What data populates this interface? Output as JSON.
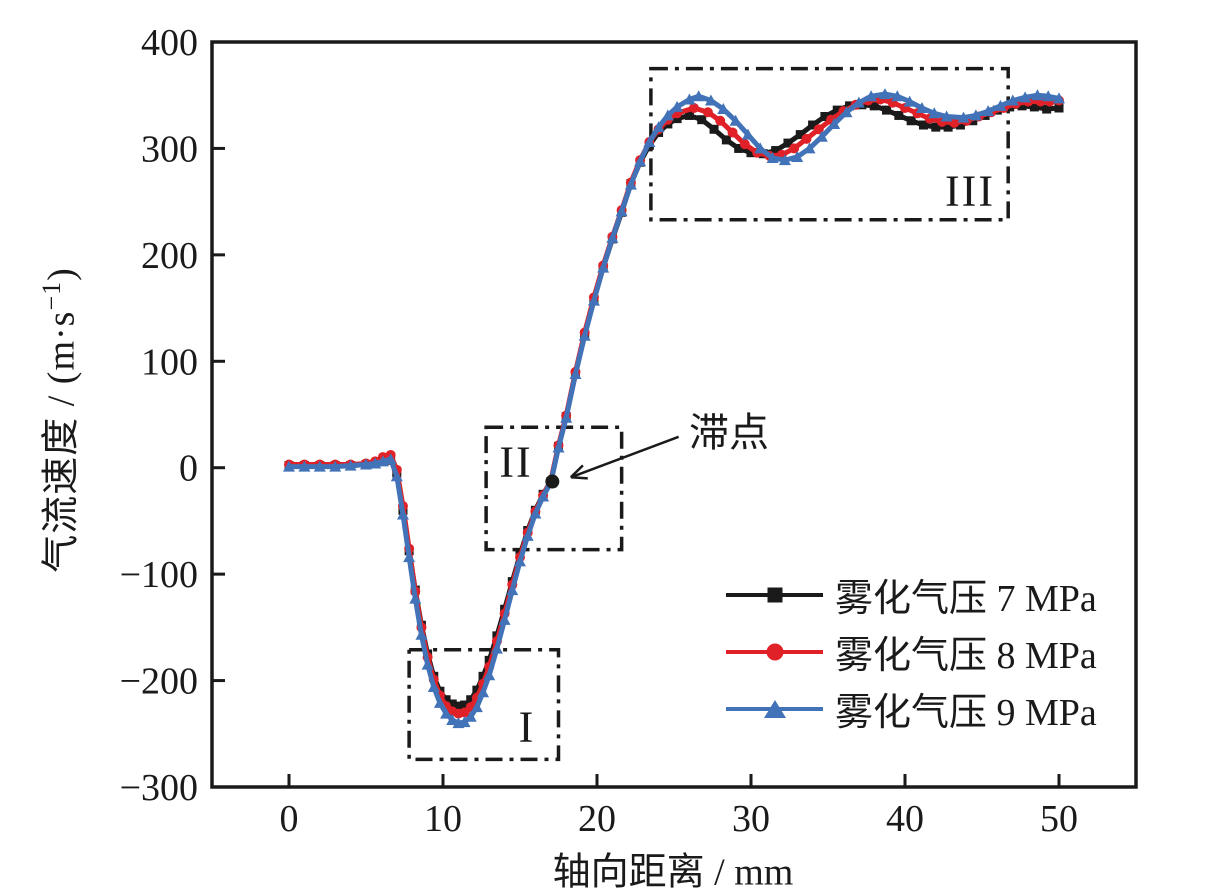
{
  "figure": {
    "background": "#ffffff",
    "frame_color": "#1a1a1a"
  },
  "chart_data": {
    "type": "line",
    "title": "",
    "xlabel": "轴向距离 / mm",
    "ylabel": "气流速度 / (m·s⁻¹)",
    "ylabel_parts": {
      "main": "气流速度 / (m·s",
      "sup": "−1",
      "close": ")"
    },
    "xlim": [
      -5,
      55
    ],
    "ylim": [
      -300,
      400
    ],
    "xticks": [
      0,
      10,
      20,
      30,
      40,
      50
    ],
    "yticks": [
      -300,
      -200,
      -100,
      0,
      100,
      200,
      300,
      400
    ],
    "grid": false,
    "legend_position": "inside lower right",
    "series": [
      {
        "name": "雾化气压 7 MPa",
        "color": "#1a1a1a",
        "marker": "square",
        "points": [
          [
            0,
            2
          ],
          [
            1,
            2
          ],
          [
            2,
            2
          ],
          [
            3,
            2
          ],
          [
            4,
            2
          ],
          [
            5,
            3
          ],
          [
            5.6,
            4
          ],
          [
            6.1,
            6
          ],
          [
            6.6,
            7
          ],
          [
            7,
            -5
          ],
          [
            7.4,
            -40
          ],
          [
            7.8,
            -78
          ],
          [
            8.2,
            -115
          ],
          [
            8.6,
            -148
          ],
          [
            9,
            -175
          ],
          [
            9.4,
            -196
          ],
          [
            9.8,
            -210
          ],
          [
            10.2,
            -218
          ],
          [
            10.6,
            -222
          ],
          [
            11,
            -224
          ],
          [
            11.4,
            -223
          ],
          [
            11.8,
            -218
          ],
          [
            12.2,
            -209
          ],
          [
            12.6,
            -196
          ],
          [
            13,
            -181
          ],
          [
            13.5,
            -158
          ],
          [
            14,
            -133
          ],
          [
            14.5,
            -107
          ],
          [
            15,
            -82
          ],
          [
            15.5,
            -59
          ],
          [
            16,
            -40
          ],
          [
            16.5,
            -25
          ],
          [
            17,
            -13
          ],
          [
            17.5,
            20
          ],
          [
            18,
            48
          ],
          [
            18.6,
            88
          ],
          [
            19.2,
            125
          ],
          [
            19.8,
            158
          ],
          [
            20.4,
            188
          ],
          [
            21,
            215
          ],
          [
            21.6,
            240
          ],
          [
            22.2,
            267
          ],
          [
            22.8,
            287
          ],
          [
            23.4,
            303
          ],
          [
            24,
            315
          ],
          [
            24.6,
            323
          ],
          [
            25.2,
            328
          ],
          [
            26,
            331
          ],
          [
            26.8,
            327
          ],
          [
            27.6,
            318
          ],
          [
            28.4,
            308
          ],
          [
            29.2,
            300
          ],
          [
            30,
            296
          ],
          [
            30.8,
            295
          ],
          [
            31.6,
            298
          ],
          [
            32.4,
            305
          ],
          [
            33.2,
            313
          ],
          [
            34,
            322
          ],
          [
            34.8,
            330
          ],
          [
            35.6,
            336
          ],
          [
            36.4,
            340
          ],
          [
            37.2,
            341
          ],
          [
            38,
            340
          ],
          [
            38.8,
            336
          ],
          [
            39.6,
            331
          ],
          [
            40.4,
            326
          ],
          [
            41.2,
            322
          ],
          [
            42,
            320
          ],
          [
            42.8,
            320
          ],
          [
            43.6,
            322
          ],
          [
            44.4,
            326
          ],
          [
            45.2,
            331
          ],
          [
            46,
            336
          ],
          [
            46.8,
            339
          ],
          [
            47.6,
            340
          ],
          [
            48.4,
            339
          ],
          [
            49.2,
            337
          ],
          [
            50,
            338
          ]
        ]
      },
      {
        "name": "雾化气压 8 MPa",
        "color": "#e02128",
        "marker": "circle",
        "points": [
          [
            0,
            3
          ],
          [
            1,
            3
          ],
          [
            2,
            3
          ],
          [
            3,
            3
          ],
          [
            4,
            3
          ],
          [
            5,
            4
          ],
          [
            5.6,
            6
          ],
          [
            6.1,
            10
          ],
          [
            6.6,
            12
          ],
          [
            7,
            -2
          ],
          [
            7.4,
            -36
          ],
          [
            7.8,
            -76
          ],
          [
            8.2,
            -116
          ],
          [
            8.6,
            -150
          ],
          [
            9,
            -178
          ],
          [
            9.4,
            -199
          ],
          [
            9.8,
            -214
          ],
          [
            10.2,
            -224
          ],
          [
            10.6,
            -229
          ],
          [
            11,
            -231
          ],
          [
            11.4,
            -230
          ],
          [
            11.8,
            -225
          ],
          [
            12.2,
            -216
          ],
          [
            12.6,
            -203
          ],
          [
            13,
            -187
          ],
          [
            13.5,
            -163
          ],
          [
            14,
            -137
          ],
          [
            14.5,
            -110
          ],
          [
            15,
            -84
          ],
          [
            15.5,
            -61
          ],
          [
            16,
            -41
          ],
          [
            16.5,
            -26
          ],
          [
            17,
            -12
          ],
          [
            17.5,
            21
          ],
          [
            18,
            49
          ],
          [
            18.6,
            90
          ],
          [
            19.2,
            127
          ],
          [
            19.8,
            160
          ],
          [
            20.4,
            190
          ],
          [
            21,
            217
          ],
          [
            21.6,
            242
          ],
          [
            22.2,
            268
          ],
          [
            22.8,
            289
          ],
          [
            23.4,
            306
          ],
          [
            24,
            318
          ],
          [
            24.6,
            327
          ],
          [
            25.2,
            333
          ],
          [
            26.3,
            338
          ],
          [
            27.2,
            334
          ],
          [
            28,
            326
          ],
          [
            28.8,
            315
          ],
          [
            29.6,
            304
          ],
          [
            30.4,
            296
          ],
          [
            31.2,
            293
          ],
          [
            32,
            294
          ],
          [
            32.8,
            300
          ],
          [
            33.6,
            309
          ],
          [
            34.4,
            318
          ],
          [
            35.2,
            327
          ],
          [
            36,
            335
          ],
          [
            36.8,
            341
          ],
          [
            37.6,
            345
          ],
          [
            38.4,
            346
          ],
          [
            39.2,
            343
          ],
          [
            40,
            338
          ],
          [
            40.8,
            333
          ],
          [
            41.6,
            328
          ],
          [
            42.4,
            325
          ],
          [
            43.2,
            324
          ],
          [
            44,
            326
          ],
          [
            44.8,
            330
          ],
          [
            45.6,
            334
          ],
          [
            46.4,
            338
          ],
          [
            47.2,
            342
          ],
          [
            48,
            344
          ],
          [
            48.8,
            344
          ],
          [
            49.4,
            344
          ],
          [
            50,
            345
          ]
        ]
      },
      {
        "name": "雾化气压 9 MPa",
        "color": "#4273b8",
        "marker": "triangle",
        "points": [
          [
            0,
            1
          ],
          [
            1,
            1
          ],
          [
            2,
            1
          ],
          [
            3,
            1
          ],
          [
            4,
            2
          ],
          [
            5,
            3
          ],
          [
            5.6,
            4
          ],
          [
            6.1,
            6
          ],
          [
            6.6,
            8
          ],
          [
            7,
            -8
          ],
          [
            7.4,
            -44
          ],
          [
            7.8,
            -84
          ],
          [
            8.2,
            -123
          ],
          [
            8.6,
            -157
          ],
          [
            9,
            -185
          ],
          [
            9.4,
            -206
          ],
          [
            9.8,
            -221
          ],
          [
            10.2,
            -231
          ],
          [
            10.6,
            -237
          ],
          [
            11,
            -240
          ],
          [
            11.4,
            -239
          ],
          [
            11.8,
            -234
          ],
          [
            12.2,
            -225
          ],
          [
            12.6,
            -211
          ],
          [
            13,
            -195
          ],
          [
            13.5,
            -170
          ],
          [
            14,
            -143
          ],
          [
            14.5,
            -115
          ],
          [
            15,
            -88
          ],
          [
            15.5,
            -64
          ],
          [
            16,
            -43
          ],
          [
            16.5,
            -27
          ],
          [
            17,
            -14
          ],
          [
            17.5,
            19
          ],
          [
            18,
            47
          ],
          [
            18.6,
            88
          ],
          [
            19.2,
            124
          ],
          [
            19.8,
            157
          ],
          [
            20.4,
            188
          ],
          [
            21,
            216
          ],
          [
            21.6,
            241
          ],
          [
            22.2,
            266
          ],
          [
            22.8,
            288
          ],
          [
            23.4,
            306
          ],
          [
            24,
            320
          ],
          [
            24.6,
            331
          ],
          [
            25.2,
            339
          ],
          [
            26,
            346
          ],
          [
            26.6,
            349
          ],
          [
            27.4,
            345
          ],
          [
            28.2,
            337
          ],
          [
            29,
            326
          ],
          [
            29.8,
            313
          ],
          [
            30.6,
            300
          ],
          [
            31.4,
            291
          ],
          [
            32.2,
            289
          ],
          [
            33,
            292
          ],
          [
            33.8,
            300
          ],
          [
            34.6,
            311
          ],
          [
            35.4,
            323
          ],
          [
            36.2,
            334
          ],
          [
            37,
            343
          ],
          [
            37.8,
            349
          ],
          [
            38.7,
            351
          ],
          [
            39.5,
            349
          ],
          [
            40.3,
            344
          ],
          [
            41.1,
            338
          ],
          [
            41.9,
            333
          ],
          [
            42.7,
            330
          ],
          [
            43.8,
            329
          ],
          [
            44.6,
            331
          ],
          [
            45.4,
            335
          ],
          [
            46.2,
            340
          ],
          [
            47,
            345
          ],
          [
            47.8,
            348
          ],
          [
            48.6,
            350
          ],
          [
            49.3,
            349
          ],
          [
            50,
            347
          ]
        ]
      }
    ],
    "regions": [
      {
        "label": "I",
        "x": [
          7.8,
          17.5
        ],
        "y": [
          -274,
          -171
        ]
      },
      {
        "label": "II",
        "x": [
          12.8,
          21.6
        ],
        "y": [
          -77,
          38
        ]
      },
      {
        "label": "III",
        "x": [
          23.5,
          46.7
        ],
        "y": [
          233,
          375
        ]
      }
    ],
    "stagnation": {
      "label": "滞点",
      "point": [
        17.1,
        -13
      ],
      "arrow_tail": [
        25.3,
        29
      ],
      "arrow_head": [
        18.3,
        -9
      ]
    }
  },
  "legend": {
    "entries": [
      {
        "label": "雾化气压 7 MPa",
        "color": "#1a1a1a",
        "marker": "square"
      },
      {
        "label": "雾化气压 8 MPa",
        "color": "#e02128",
        "marker": "circle"
      },
      {
        "label": "雾化气压 9 MPa",
        "color": "#4273b8",
        "marker": "triangle"
      }
    ]
  }
}
